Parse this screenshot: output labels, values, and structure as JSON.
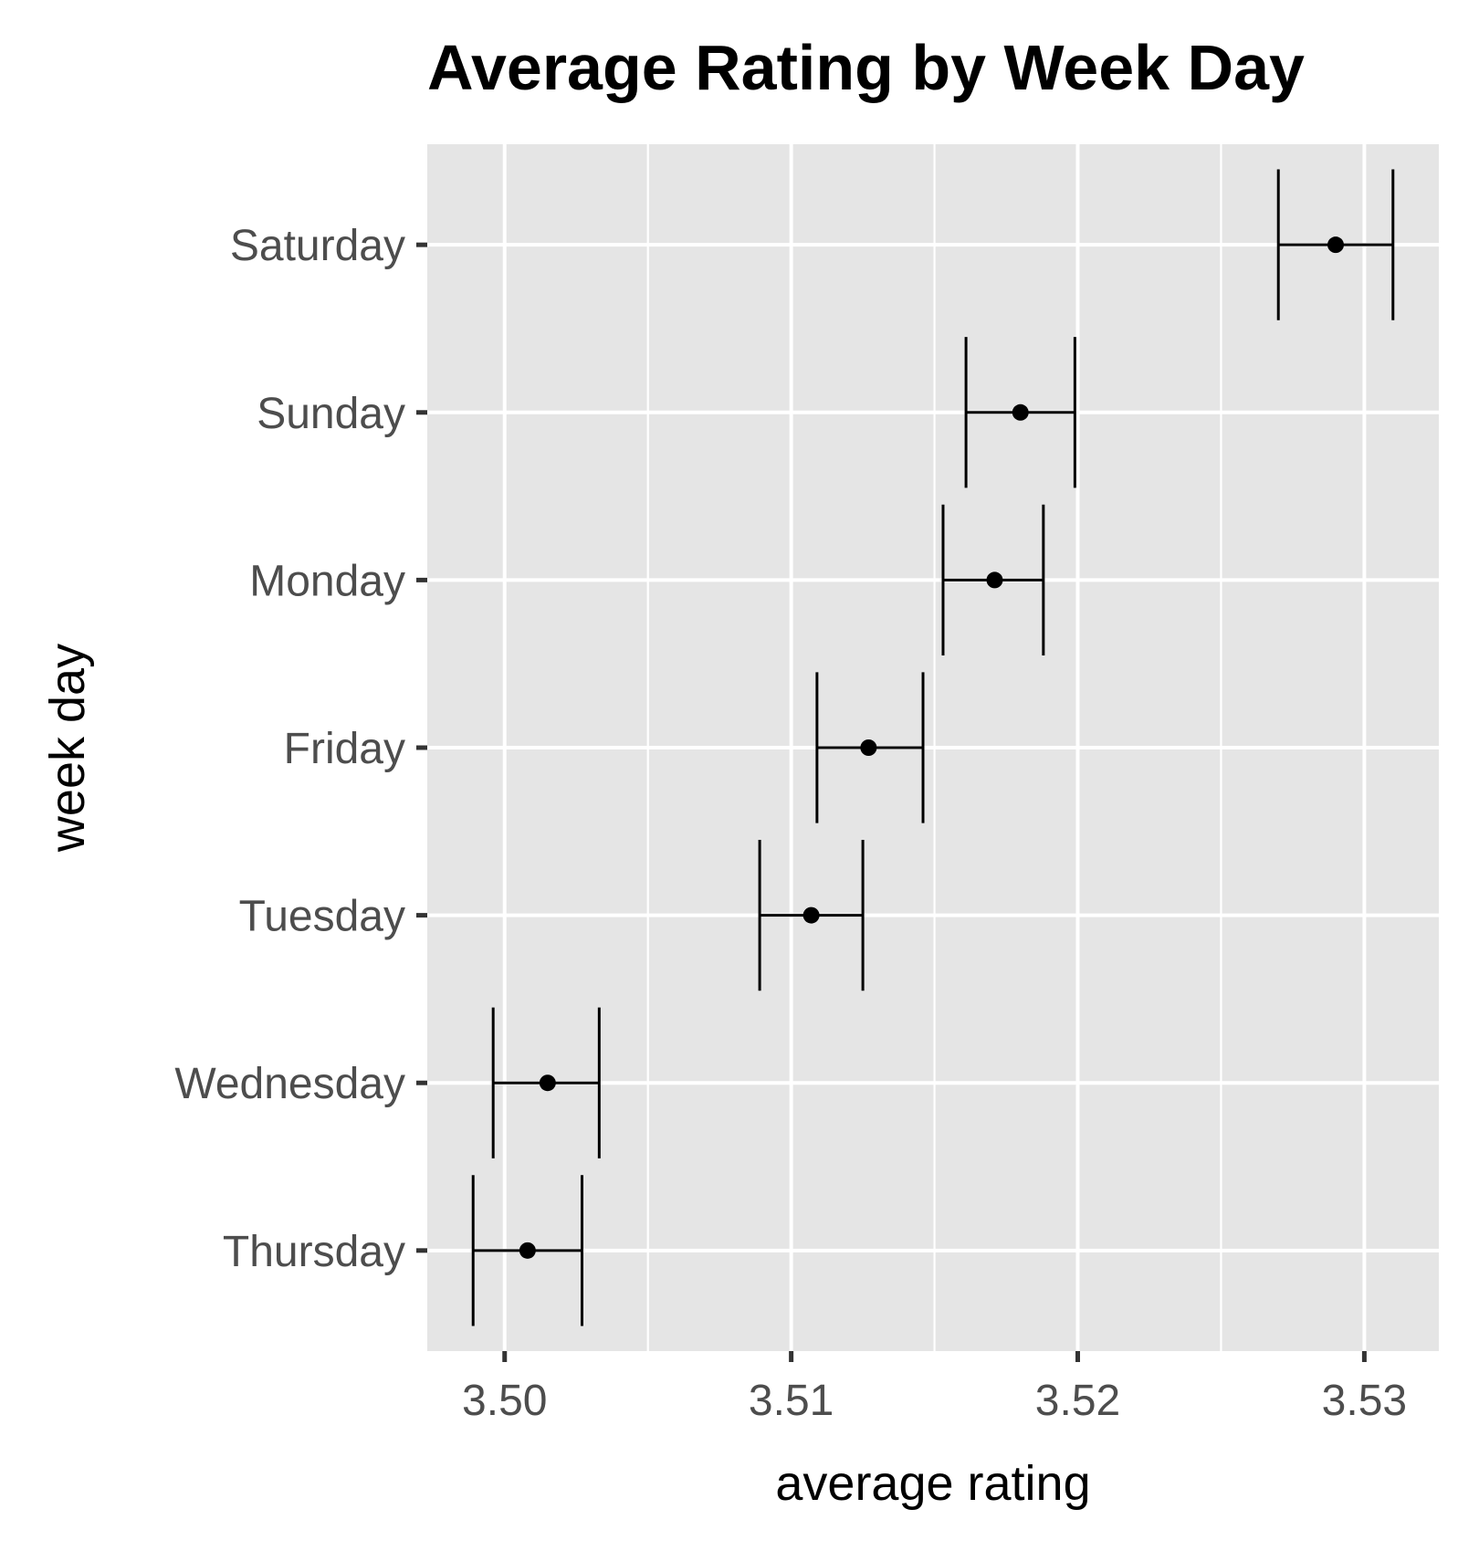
{
  "chart_data": {
    "type": "errorbar",
    "title": "Average Rating by Week Day",
    "xlabel": "average rating",
    "ylabel": "week day",
    "xlim": [
      3.4973,
      3.5326
    ],
    "x_ticks": [
      3.5,
      3.51,
      3.52,
      3.53
    ],
    "x_tick_labels": [
      "3.50",
      "3.51",
      "3.52",
      "3.53"
    ],
    "grid": true,
    "categories": [
      "Saturday",
      "Sunday",
      "Monday",
      "Friday",
      "Tuesday",
      "Wednesday",
      "Thursday"
    ],
    "values": [
      3.529,
      3.518,
      3.5171,
      3.5127,
      3.5107,
      3.5015,
      3.5008
    ],
    "lower": [
      3.527,
      3.5161,
      3.5153,
      3.5109,
      3.5089,
      3.4996,
      3.4989
    ],
    "upper": [
      3.531,
      3.5199,
      3.5188,
      3.5146,
      3.5125,
      3.5033,
      3.5027
    ],
    "colors": {
      "panel": "#e5e5e5",
      "grid": "#ffffff",
      "marks": "#000000",
      "tick_text": "#4d4d4d"
    }
  }
}
